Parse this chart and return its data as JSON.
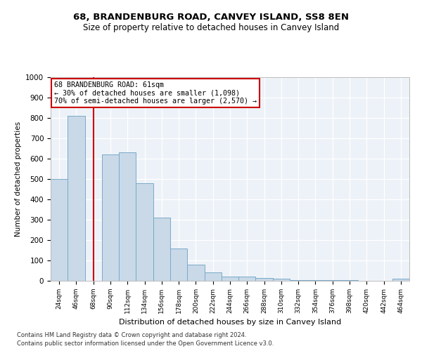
{
  "title": "68, BRANDENBURG ROAD, CANVEY ISLAND, SS8 8EN",
  "subtitle": "Size of property relative to detached houses in Canvey Island",
  "xlabel": "Distribution of detached houses by size in Canvey Island",
  "ylabel": "Number of detached properties",
  "footnote1": "Contains HM Land Registry data © Crown copyright and database right 2024.",
  "footnote2": "Contains public sector information licensed under the Open Government Licence v3.0.",
  "categories": [
    "24sqm",
    "46sqm",
    "68sqm",
    "90sqm",
    "112sqm",
    "134sqm",
    "156sqm",
    "178sqm",
    "200sqm",
    "222sqm",
    "244sqm",
    "266sqm",
    "288sqm",
    "310sqm",
    "332sqm",
    "354sqm",
    "376sqm",
    "398sqm",
    "420sqm",
    "442sqm",
    "464sqm"
  ],
  "values": [
    500,
    810,
    0,
    620,
    630,
    480,
    310,
    160,
    80,
    42,
    22,
    20,
    13,
    10,
    5,
    4,
    2,
    2,
    1,
    0,
    10
  ],
  "bar_color": "#c9d9e8",
  "bar_edge_color": "#7aaac8",
  "vline_x": 2,
  "vline_color": "#cc0000",
  "annotation_line1": "68 BRANDENBURG ROAD: 61sqm",
  "annotation_line2": "← 30% of detached houses are smaller (1,098)",
  "annotation_line3": "70% of semi-detached houses are larger (2,570) →",
  "annotation_box_color": "#cc0000",
  "ylim": [
    0,
    1000
  ],
  "yticks": [
    0,
    100,
    200,
    300,
    400,
    500,
    600,
    700,
    800,
    900,
    1000
  ],
  "plot_bg_color": "#edf2f8"
}
